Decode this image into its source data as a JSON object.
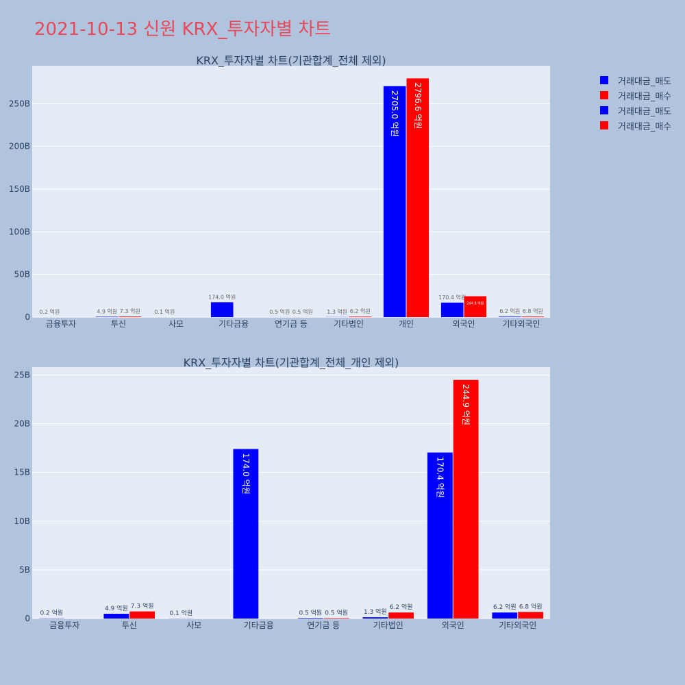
{
  "page": {
    "title": "2021-10-13 신원 KRX_투자자별 차트"
  },
  "legend": [
    {
      "label": "거래대금_매도",
      "color": "#0000ff"
    },
    {
      "label": "거래대금_매수",
      "color": "#ff0000"
    },
    {
      "label": "거래대금_매도",
      "color": "#0000ff"
    },
    {
      "label": "거래대금_매수",
      "color": "#ff0000"
    }
  ],
  "chart_data": [
    {
      "type": "bar",
      "title": "KRX_투자자별 차트(기관합계_전체 제외)",
      "categories": [
        "금융투자",
        "투신",
        "사모",
        "기타금융",
        "연기금 등",
        "기타법인",
        "개인",
        "외국인",
        "기타외국인"
      ],
      "series": [
        {
          "name": "거래대금_매도",
          "color": "#0000ff",
          "values": [
            0.02,
            0.49,
            0.01,
            17.4,
            0.05,
            0.13,
            270.5,
            17.04,
            0.62
          ],
          "labels": [
            "0.2 억원",
            "4.9 억원",
            "0.1 억원",
            "174.0 억원",
            "0.5 억원",
            "1.3 억원",
            "2705.0 억원",
            "170.4 억원",
            "6.2 억원"
          ]
        },
        {
          "name": "거래대금_매수",
          "color": "#ff0000",
          "values": [
            0,
            0.73,
            0,
            0,
            0.05,
            0.62,
            279.66,
            24.49,
            0.68
          ],
          "labels": [
            "",
            "7.3 억원",
            "",
            "",
            "0.5 억원",
            "6.2 억원",
            "2796.6 억원",
            "244.9 억원",
            "6.8 억원"
          ]
        }
      ],
      "yticks": [
        0,
        50,
        100,
        150,
        200,
        250
      ],
      "ytick_labels": [
        "0",
        "50B",
        "100B",
        "150B",
        "200B",
        "250B"
      ],
      "ylim": [
        0,
        294.4
      ],
      "grid": true
    },
    {
      "type": "bar",
      "title": "KRX_투자자별 차트(기관합계_전체_개인 제외)",
      "categories": [
        "금융투자",
        "투신",
        "사모",
        "기타금융",
        "연기금 등",
        "기타법인",
        "외국인",
        "기타외국인"
      ],
      "series": [
        {
          "name": "거래대금_매도",
          "color": "#0000ff",
          "values": [
            0.02,
            0.49,
            0.01,
            17.4,
            0.05,
            0.13,
            17.04,
            0.62
          ],
          "labels": [
            "0.2 억원",
            "4.9 억원",
            "0.1 억원",
            "174.0 억원",
            "0.5 억원",
            "1.3 억원",
            "170.4 억원",
            "6.2 억원"
          ]
        },
        {
          "name": "거래대금_매수",
          "color": "#ff0000",
          "values": [
            0,
            0.73,
            0,
            0,
            0.05,
            0.62,
            24.49,
            0.68
          ],
          "labels": [
            "",
            "7.3 억원",
            "",
            "",
            "0.5 억원",
            "6.2 억원",
            "244.9 억원",
            "6.8 억원"
          ]
        }
      ],
      "yticks": [
        0,
        5,
        10,
        15,
        20,
        25
      ],
      "ytick_labels": [
        "0",
        "5B",
        "10B",
        "15B",
        "20B",
        "25B"
      ],
      "ylim": [
        0,
        25.8
      ],
      "grid": true
    }
  ]
}
